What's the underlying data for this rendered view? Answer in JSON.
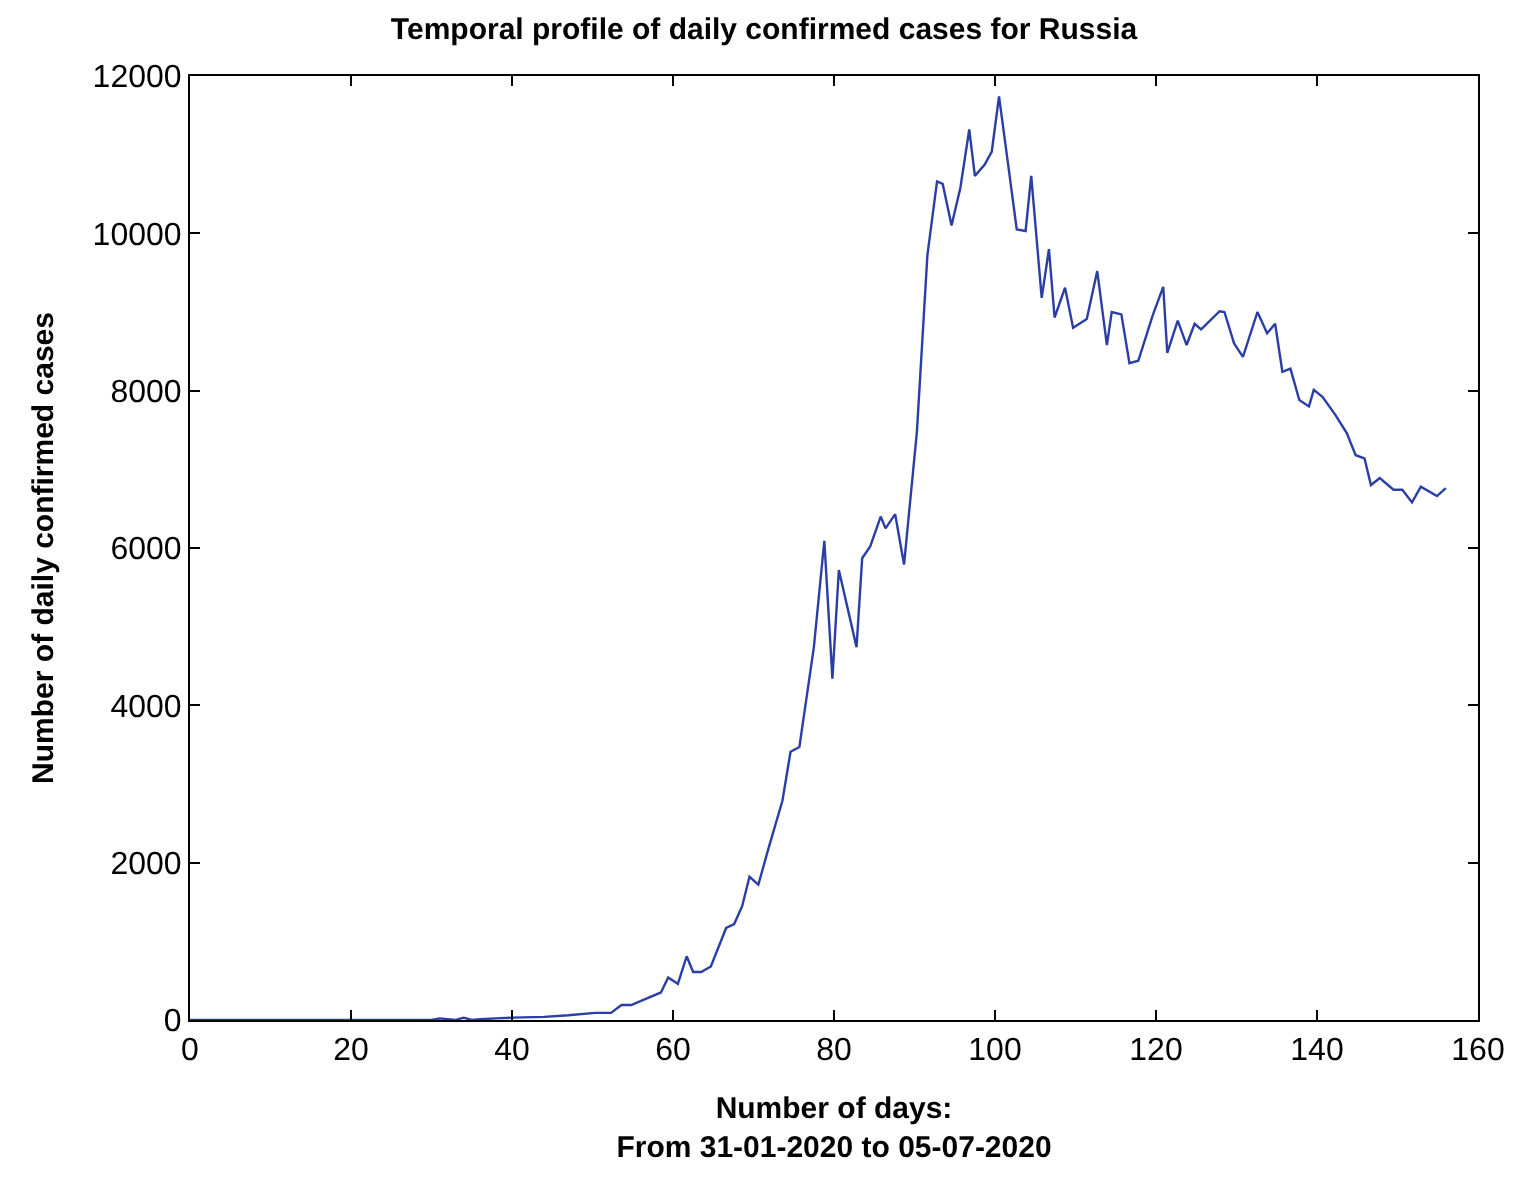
{
  "chart_data": {
    "type": "line",
    "title": "Temporal profile of daily confirmed cases for Russia",
    "xlabel": "Number of days:\nFrom 31-01-2020 to 05-07-2020",
    "ylabel": "Number of daily confirmed cases",
    "series": [
      {
        "color": "#2b3ea6",
        "x": [
          0,
          30,
          31,
          33,
          34,
          35,
          36,
          38,
          40,
          44,
          47,
          50.3,
          52.3,
          53.6,
          54.8,
          58.5,
          59.4,
          60.6,
          61.7,
          62.5,
          63.5,
          64.7,
          66.6,
          67.6,
          68.6,
          69.5,
          70.6,
          71.8,
          73.6,
          74.6,
          75.7,
          77.5,
          78.8,
          79.8,
          80.6,
          82.8,
          83.5,
          84.5,
          85.8,
          86.4,
          87.6,
          88.7,
          90.3,
          91.6,
          92.8,
          93.5,
          94.6,
          95.7,
          96.8,
          97.5,
          98.7,
          99.6,
          100.5,
          101.6,
          102.7,
          103.8,
          104.5,
          105.8,
          106.7,
          107.4,
          108.7,
          109.7,
          111.4,
          112.7,
          113.9,
          114.5,
          115.7,
          116.7,
          117.8,
          119.6,
          120.9,
          121.4,
          122.7,
          123.8,
          124.8,
          125.6,
          127.9,
          128.5,
          129.7,
          130.8,
          132.6,
          133.8,
          134.8,
          135.7,
          136.7,
          137.8,
          139.0,
          139.6,
          140.7,
          142.3,
          143.7,
          144.8,
          145.9,
          146.7,
          147.8,
          149.5,
          150.6,
          151.8,
          152.9,
          154.9,
          156.0
        ],
        "values": [
          0,
          0,
          20,
          0,
          30,
          0,
          10,
          20,
          30,
          40,
          60,
          90,
          90,
          190,
          190,
          350,
          540,
          460,
          810,
          610,
          610,
          680,
          1170,
          1220,
          1450,
          1820,
          1720,
          2160,
          2790,
          3410,
          3470,
          4740,
          6090,
          4340,
          5720,
          4740,
          5870,
          6020,
          6400,
          6250,
          6430,
          5790,
          7480,
          9720,
          10660,
          10630,
          10100,
          10580,
          11320,
          10730,
          10870,
          11040,
          11740,
          10900,
          10050,
          10030,
          10730,
          9180,
          9800,
          8930,
          9310,
          8800,
          8910,
          9520,
          8580,
          9000,
          8970,
          8350,
          8380,
          8960,
          9320,
          8480,
          8890,
          8580,
          8850,
          8780,
          9010,
          9000,
          8600,
          8430,
          9000,
          8730,
          8850,
          8240,
          8280,
          7880,
          7800,
          8010,
          7920,
          7690,
          7460,
          7180,
          7140,
          6800,
          6890,
          6740,
          6740,
          6580,
          6780,
          6660,
          6760
        ]
      }
    ],
    "xlim": [
      0,
      160
    ],
    "xticks": [
      0,
      20,
      40,
      60,
      80,
      100,
      120,
      140,
      160
    ],
    "ylim": [
      0,
      12000
    ],
    "yticks": [
      0,
      2000,
      4000,
      6000,
      8000,
      10000,
      12000
    ],
    "legend": false,
    "marker": "none",
    "line_style": "solid"
  }
}
